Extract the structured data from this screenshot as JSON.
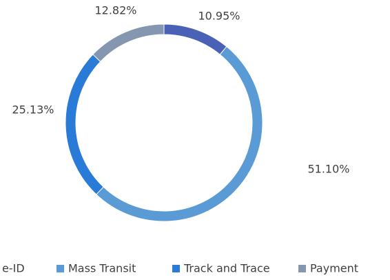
{
  "chart_data": {
    "type": "donut",
    "categories": [
      "e-ID",
      "Mass Transit",
      "Track and Trace",
      "Payment"
    ],
    "values": [
      10.95,
      51.1,
      25.13,
      12.82
    ],
    "value_labels": [
      "10.95%",
      "51.10%",
      "25.13%",
      "12.82%"
    ],
    "colors": [
      "#4a62b5",
      "#5b9bd5",
      "#2a7ad8",
      "#8496b0"
    ],
    "legend": "bottom"
  }
}
